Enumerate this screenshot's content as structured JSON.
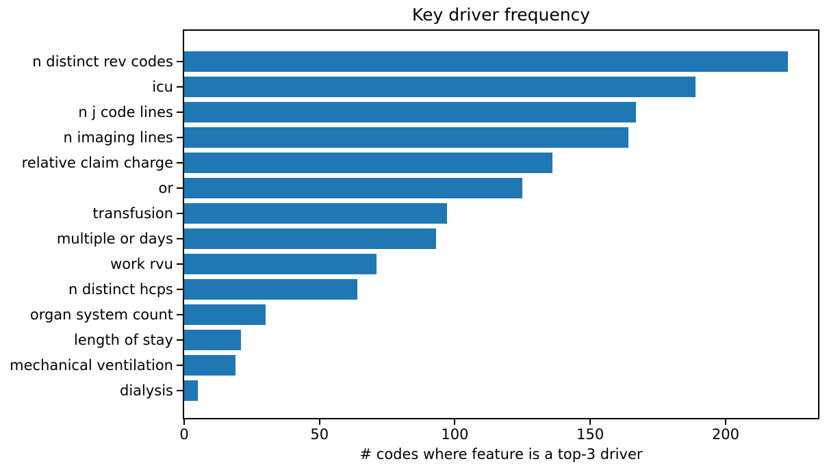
{
  "chart_data": {
    "type": "bar",
    "orientation": "horizontal",
    "title": "Key driver frequency",
    "xlabel": "# codes where feature is a top-3 driver",
    "ylabel": "",
    "categories": [
      "n distinct rev codes",
      "icu",
      "n j code lines",
      "n imaging lines",
      "relative claim charge",
      "or",
      "transfusion",
      "multiple or days",
      "work rvu",
      "n distinct hcps",
      "organ system count",
      "length of stay",
      "mechanical ventilation",
      "dialysis"
    ],
    "values": [
      223,
      189,
      167,
      164,
      136,
      125,
      97,
      93,
      71,
      64,
      30,
      21,
      19,
      5
    ],
    "xticks": [
      0,
      50,
      100,
      150,
      200
    ],
    "xlim": [
      0,
      234.15
    ],
    "grid": false,
    "legend_position": "none",
    "bar_color": "#1f77b4",
    "text_color": "#000000",
    "spine_color": "#000000",
    "background_color": "#ffffff"
  }
}
